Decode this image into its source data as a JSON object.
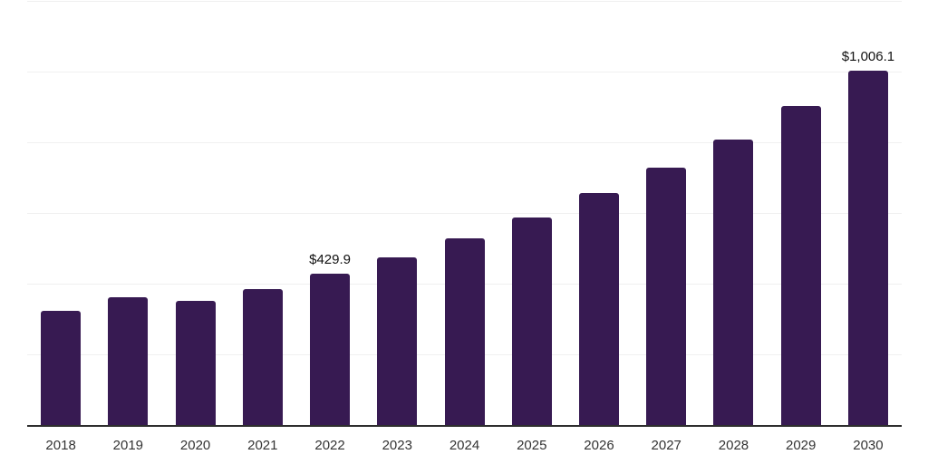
{
  "chart_data": {
    "type": "bar",
    "title": "",
    "xlabel": "",
    "ylabel": "",
    "categories": [
      "2018",
      "2019",
      "2020",
      "2021",
      "2022",
      "2023",
      "2024",
      "2025",
      "2026",
      "2027",
      "2028",
      "2029",
      "2030"
    ],
    "values": [
      326.0,
      364.5,
      354.5,
      387.5,
      429.9,
      476.0,
      530.0,
      590.0,
      658.0,
      731.5,
      811.0,
      904.5,
      1006.1
    ],
    "value_labels": [
      "",
      "",
      "",
      "",
      "$429.9",
      "",
      "",
      "",
      "",
      "",
      "",
      "",
      "$1,006.1"
    ],
    "ylim": [
      0,
      1200
    ],
    "gridline_step": 200,
    "grid": true,
    "legend": "none",
    "colors": {
      "bar": "#371a52",
      "gridline": "#f0f0f0",
      "axis_line": "#2e2e2e",
      "tick_label": "#333333",
      "value_label": "#111111",
      "background": "#ffffff"
    }
  }
}
